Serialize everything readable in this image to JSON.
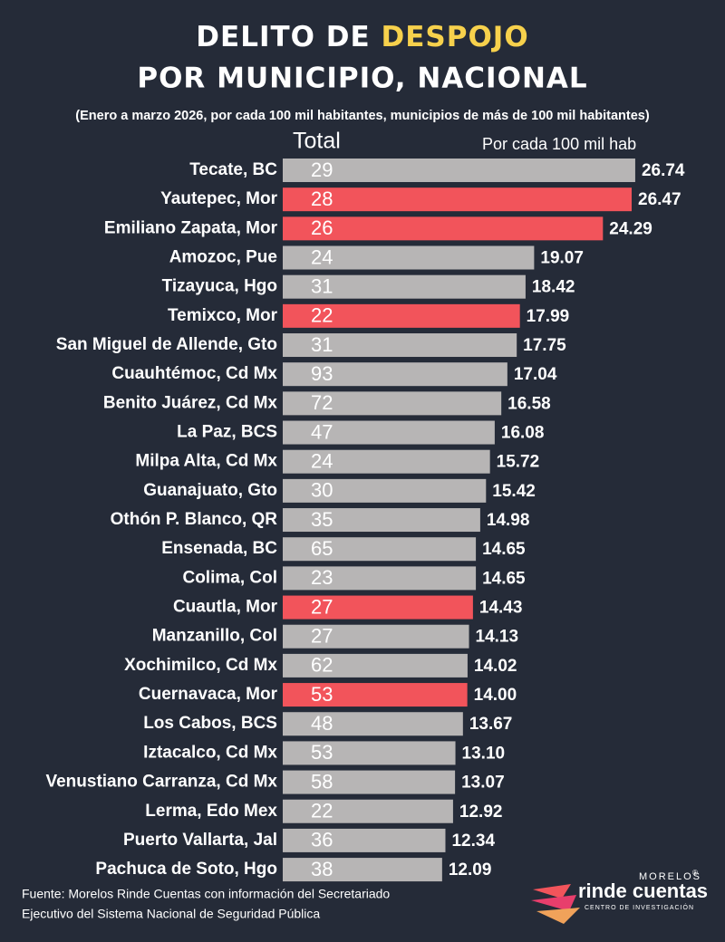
{
  "chart_data": {
    "type": "bar",
    "orientation": "horizontal",
    "title_parts": [
      "DELITO DE",
      "DESPOJO",
      "POR MUNICIPIO, NACIONAL"
    ],
    "title_highlight_color": "#f7d14c",
    "subtitle": "(Enero a marzo 2026, por cada 100 mil habitantes, municipios de más de 100 mil habitantes)",
    "total_header": "Total",
    "value_header": "Por cada 100 mil hab",
    "categories": [
      "Tecate, BC",
      "Yautepec, Mor",
      "Emiliano Zapata, Mor",
      "Amozoc, Pue",
      "Tizayuca, Hgo",
      "Temixco, Mor",
      "San Miguel de Allende, Gto",
      "Cuauhtémoc, Cd Mx",
      "Benito Juárez, Cd Mx",
      "La Paz, BCS",
      "Milpa Alta, Cd Mx",
      "Guanajuato, Gto",
      "Othón P. Blanco, QR",
      "Ensenada, BC",
      "Colima, Col",
      "Cuautla, Mor",
      "Manzanillo, Col",
      "Xochimilco, Cd Mx",
      "Cuernavaca, Mor",
      "Los Cabos, BCS",
      "Iztacalco, Cd Mx",
      "Venustiano Carranza, Cd Mx",
      "Lerma, Edo Mex",
      "Puerto Vallarta, Jal",
      "Pachuca de Soto, Hgo"
    ],
    "values": [
      26.74,
      26.47,
      24.29,
      19.07,
      18.42,
      17.99,
      17.75,
      17.04,
      16.58,
      16.08,
      15.72,
      15.42,
      14.98,
      14.65,
      14.65,
      14.43,
      14.13,
      14.02,
      14.0,
      13.67,
      13.1,
      13.07,
      12.92,
      12.34,
      12.09
    ],
    "value_labels": [
      "26.74",
      "26.47",
      "24.29",
      "19.07",
      "18.42",
      "17.99",
      "17.75",
      "17.04",
      "16.58",
      "16.08",
      "15.72",
      "15.42",
      "14.98",
      "14.65",
      "14.65",
      "14.43",
      "14.13",
      "14.02",
      "14.00",
      "13.67",
      "13.10",
      "13.07",
      "12.92",
      "12.34",
      "12.09"
    ],
    "totals": [
      29,
      28,
      26,
      24,
      31,
      22,
      31,
      93,
      72,
      47,
      24,
      30,
      35,
      65,
      23,
      27,
      27,
      62,
      53,
      48,
      53,
      58,
      22,
      36,
      38
    ],
    "colors": [
      "#b7b5b5",
      "#f2545b",
      "#f2545b",
      "#b7b5b5",
      "#b7b5b5",
      "#f2545b",
      "#b7b5b5",
      "#b7b5b5",
      "#b7b5b5",
      "#b7b5b5",
      "#b7b5b5",
      "#b7b5b5",
      "#b7b5b5",
      "#b7b5b5",
      "#b7b5b5",
      "#f2545b",
      "#b7b5b5",
      "#b7b5b5",
      "#f2545b",
      "#b7b5b5",
      "#b7b5b5",
      "#b7b5b5",
      "#b7b5b5",
      "#b7b5b5",
      "#b7b5b5"
    ],
    "xlim": [
      0,
      27.5
    ]
  },
  "source": [
    "Fuente: Morelos Rinde Cuentas con información del Secretariado",
    "Ejecutivo del Sistema Nacional de Seguridad Pública"
  ],
  "logo": {
    "top": "MORELOS",
    "mark": "®",
    "name": "rinde cuentas",
    "tagline": "CENTRO DE INVESTIGACIÓN"
  }
}
